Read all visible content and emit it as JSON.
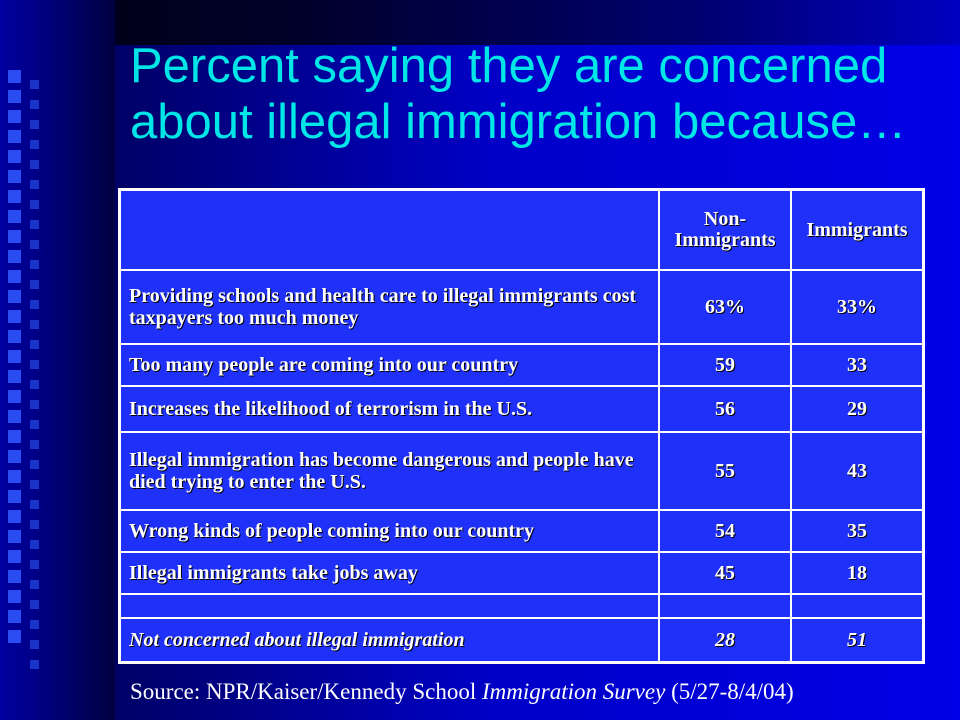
{
  "title": "Percent saying they are concerned about illegal immigration because…",
  "colors": {
    "background": "#0000e6",
    "title": "#00e5e5",
    "table_fill": "#1f30f8",
    "text": "#ffffff"
  },
  "chart_data": {
    "type": "table",
    "columns": [
      "Non-Immigrants",
      "Immigrants"
    ],
    "column_display": [
      [
        "Non-",
        "Immigrants"
      ],
      [
        "Immigrants"
      ]
    ],
    "rows": [
      {
        "label": "Providing schools and health care to illegal immigrants cost taxpayers too much money",
        "non_immigrants": "63%",
        "immigrants": "33%"
      },
      {
        "label": "Too many people are coming into our country",
        "non_immigrants": "59",
        "immigrants": "33"
      },
      {
        "label": "Increases the likelihood of terrorism in the U.S.",
        "non_immigrants": "56",
        "immigrants": "29"
      },
      {
        "label": "Illegal immigration has become dangerous and people have died trying to enter the U.S.",
        "non_immigrants": "55",
        "immigrants": "43"
      },
      {
        "label": "Wrong kinds of people coming into our country",
        "non_immigrants": "54",
        "immigrants": "35"
      },
      {
        "label": "Illegal immigrants take jobs away",
        "non_immigrants": "45",
        "immigrants": "18"
      },
      {
        "label": "",
        "non_immigrants": "",
        "immigrants": ""
      },
      {
        "label": "Not concerned about illegal immigration",
        "non_immigrants": "28",
        "immigrants": "51"
      }
    ]
  },
  "source": {
    "prefix": "Source: NPR/Kaiser/Kennedy School ",
    "survey": "Immigration Survey",
    "suffix": " (5/27-8/4/04)"
  }
}
